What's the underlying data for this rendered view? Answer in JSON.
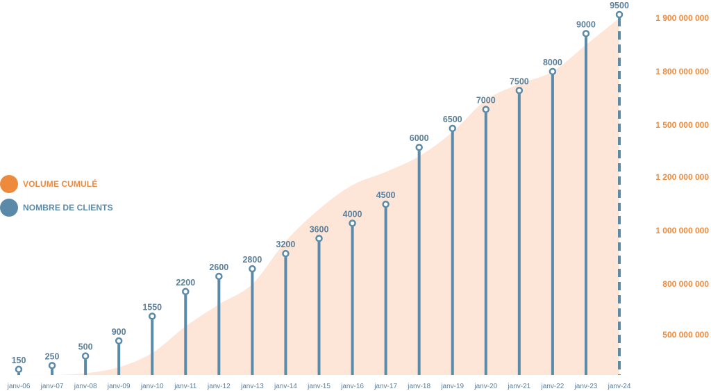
{
  "colors": {
    "area": "#fde6d8",
    "bar": "#5b8aa8",
    "orange": "#ee8a3c",
    "text_blue": "#5b7f99"
  },
  "legend": {
    "items": [
      {
        "label": "VOLUME CUMULÉ",
        "color": "#ee8a3c"
      },
      {
        "label": "NOMBRE DE CLIENTS",
        "color": "#5b8aa8"
      }
    ]
  },
  "chart_data": {
    "type": "bar",
    "categories": [
      "janv-06",
      "janv-07",
      "janv-08",
      "janv-09",
      "janv-10",
      "janv-11",
      "janv-12",
      "janv-13",
      "janv-14",
      "janv-15",
      "janv-16",
      "janv-17",
      "janv-18",
      "janv-19",
      "janv-20",
      "janv-21",
      "janv-22",
      "janv-23",
      "janv-24"
    ],
    "series": [
      {
        "name": "NOMBRE DE CLIENTS",
        "type": "lollipop",
        "values": [
          150,
          250,
          500,
          900,
          1550,
          2200,
          2600,
          2800,
          3200,
          3600,
          4000,
          4500,
          6000,
          6500,
          7000,
          7500,
          8000,
          9000,
          9500
        ],
        "last_dashed": true
      },
      {
        "name": "VOLUME CUMULÉ",
        "type": "area",
        "values": [
          0,
          40000000,
          120000000,
          180000000,
          320000000,
          550000000,
          680000000,
          800000000,
          960000000,
          1080000000,
          1170000000,
          1230000000,
          1320000000,
          1460000000,
          1640000000,
          1730000000,
          1800000000,
          1850000000,
          1910000000
        ]
      }
    ],
    "ylim_left": [
      0,
      9500
    ],
    "y2_ticks": [
      {
        "value": 500000000,
        "label": "500 000 000"
      },
      {
        "value": 800000000,
        "label": "800 000 000"
      },
      {
        "value": 1000000000,
        "label": "1 000 000 000"
      },
      {
        "value": 1200000000,
        "label": "1 200 000 000"
      },
      {
        "value": 1500000000,
        "label": "1 500 000 000"
      },
      {
        "value": 1800000000,
        "label": "1 800 000 000"
      },
      {
        "value": 1900000000,
        "label": "1 900 000 000"
      }
    ],
    "grid": false,
    "legend_position": "left"
  }
}
